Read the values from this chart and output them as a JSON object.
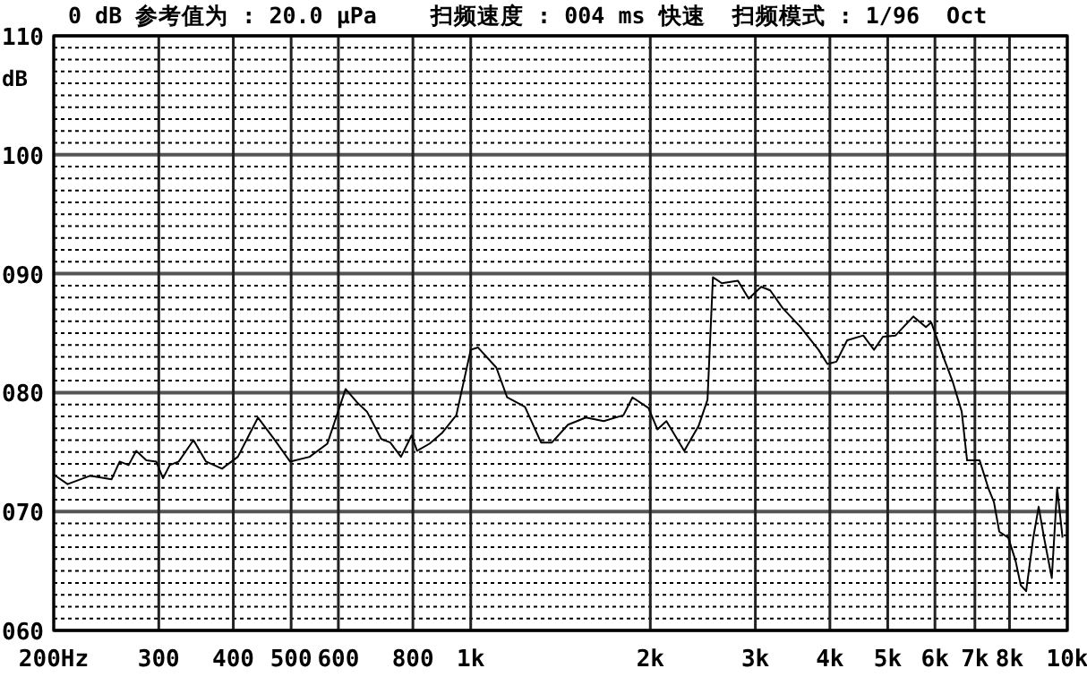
{
  "chart_data": {
    "type": "line",
    "title": "0 dB 参考值为 : 20.0 μPa    扫频速度 : 004 ms 快速  扫频模式 : 1/96  Oct",
    "ylabel": "dB",
    "log": "x",
    "grid": true,
    "xlim": [
      200,
      10000
    ],
    "ylim": [
      60,
      110
    ],
    "xticks": [
      {
        "value": 200,
        "label": "200Hz"
      },
      300,
      400,
      500,
      600,
      800,
      {
        "value": 1000,
        "label": "1k"
      },
      {
        "value": 2000,
        "label": "2k"
      },
      {
        "value": 3000,
        "label": "3k"
      },
      {
        "value": 4000,
        "label": "4k"
      },
      {
        "value": 5000,
        "label": "5k"
      },
      {
        "value": 6000,
        "label": "6k"
      },
      {
        "value": 7000,
        "label": "7k"
      },
      {
        "value": 8000,
        "label": "8k"
      },
      {
        "value": 10000,
        "label": "10k"
      }
    ],
    "yticks": [
      {
        "value": 60,
        "label": "060"
      },
      {
        "value": 70,
        "label": "070"
      },
      {
        "value": 80,
        "label": "080"
      },
      {
        "value": 90,
        "label": "090"
      },
      {
        "value": 100,
        "label": "100"
      },
      {
        "value": 110,
        "label": "110"
      }
    ],
    "series": [
      {
        "color": "#000000",
        "x": [
          200,
          211,
          230,
          250,
          258,
          267,
          275,
          286,
          297,
          305,
          313,
          324,
          343,
          360,
          383,
          407,
          440,
          468,
          498,
          537,
          575,
          592,
          617,
          647,
          670,
          708,
          733,
          764,
          796,
          813,
          853,
          895,
          946,
          1000,
          1028,
          1104,
          1151,
          1233,
          1312,
          1368,
          1456,
          1560,
          1671,
          1803,
          1867,
          1986,
          2056,
          2128,
          2280,
          2410,
          2494,
          2547,
          2636,
          2805,
          2924,
          3069,
          3177,
          3334,
          3573,
          3828,
          3963,
          4102,
          4276,
          4550,
          4742,
          4909,
          5152,
          5521,
          5794,
          5916,
          6209,
          6427,
          6653,
          6792,
          7129,
          7380,
          7534,
          7691,
          7962,
          8186,
          8356,
          8531,
          8770,
          8954,
          9141,
          9419,
          9616,
          9817
        ],
        "values": [
          73.1,
          72.3,
          73.0,
          72.7,
          74.2,
          73.9,
          75.1,
          74.3,
          74.2,
          72.8,
          73.9,
          74.2,
          76.0,
          74.2,
          73.6,
          74.6,
          77.9,
          76.1,
          74.2,
          74.6,
          75.7,
          77.6,
          80.3,
          79.1,
          78.4,
          76.1,
          75.8,
          74.6,
          76.4,
          75.1,
          75.7,
          76.6,
          78.1,
          83.6,
          83.8,
          82.1,
          79.6,
          78.8,
          75.8,
          75.8,
          77.3,
          77.9,
          77.6,
          78.1,
          79.6,
          78.7,
          76.9,
          77.6,
          75.1,
          77.2,
          79.4,
          89.7,
          89.2,
          89.4,
          87.9,
          88.9,
          88.6,
          87.1,
          85.5,
          83.6,
          82.4,
          82.6,
          84.4,
          84.8,
          83.6,
          84.7,
          84.8,
          86.4,
          85.5,
          85.9,
          82.9,
          80.9,
          78.4,
          74.3,
          74.3,
          71.9,
          70.8,
          68.3,
          67.8,
          65.9,
          63.8,
          63.3,
          67.8,
          70.4,
          67.8,
          64.4,
          72.0,
          67.8
        ]
      }
    ]
  }
}
